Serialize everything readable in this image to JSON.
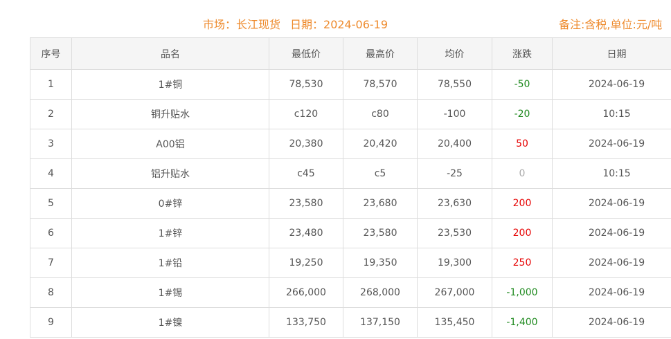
{
  "header": {
    "market": "市场：长江现货",
    "date": "日期：2024-06-19",
    "note": "备注:含税,单位:元/吨"
  },
  "columns": [
    "序号",
    "品名",
    "最低价",
    "最高价",
    "均价",
    "涨跌",
    "日期"
  ],
  "rows": [
    [
      "1",
      "1#铜",
      "78,530",
      "78,570",
      "78,550",
      "-50",
      "2024-06-19"
    ],
    [
      "2",
      "铜升贴水",
      "c120",
      "c80",
      "-100",
      "-20",
      "10:15"
    ],
    [
      "3",
      "A00铝",
      "20,380",
      "20,420",
      "20,400",
      "50",
      "2024-06-19"
    ],
    [
      "4",
      "铝升贴水",
      "c45",
      "c5",
      "-25",
      "0",
      "10:15"
    ],
    [
      "5",
      "0#锌",
      "23,580",
      "23,680",
      "23,630",
      "200",
      "2024-06-19"
    ],
    [
      "6",
      "1#锌",
      "23,480",
      "23,580",
      "23,530",
      "200",
      "2024-06-19"
    ],
    [
      "7",
      "1#铅",
      "19,250",
      "19,350",
      "19,300",
      "250",
      "2024-06-19"
    ],
    [
      "8",
      "1#锡",
      "266,000",
      "268,000",
      "267,000",
      "-1,000",
      "2024-06-19"
    ],
    [
      "9",
      "1#镍",
      "133,750",
      "137,150",
      "135,450",
      "-1,400",
      "2024-06-19"
    ]
  ],
  "colors": {
    "title": "#ee8a2c",
    "up": "#e60000",
    "down": "#1f8a1f",
    "flat": "#aaaaaa"
  }
}
